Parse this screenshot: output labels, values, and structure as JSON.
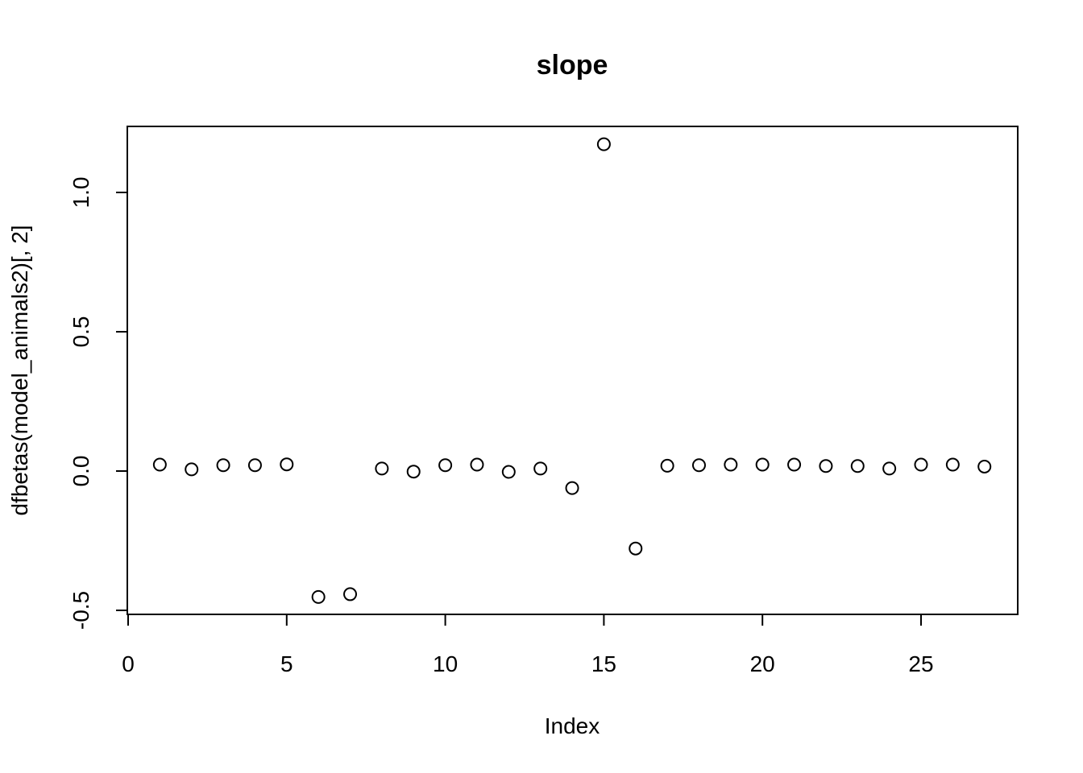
{
  "chart_data": {
    "type": "scatter",
    "title": "slope",
    "xlabel": "Index",
    "ylabel": "dfbetas(model_animals2)[, 2]",
    "xlim": [
      0,
      28
    ],
    "ylim": [
      -0.52,
      1.24
    ],
    "xticks": [
      0,
      5,
      10,
      15,
      20,
      25
    ],
    "xtick_labels": [
      "0",
      "5",
      "10",
      "15",
      "20",
      "25"
    ],
    "yticks": [
      -0.5,
      0.0,
      0.5,
      1.0
    ],
    "ytick_labels": [
      "-0.5",
      "0.0",
      "0.5",
      "1.0"
    ],
    "grid": false,
    "legend": "none",
    "marker": "open-circle",
    "x": [
      1,
      2,
      3,
      4,
      5,
      6,
      7,
      8,
      9,
      10,
      11,
      12,
      13,
      14,
      15,
      16,
      17,
      18,
      19,
      20,
      21,
      22,
      23,
      24,
      25,
      26,
      27
    ],
    "y": [
      0.023,
      0.006,
      0.021,
      0.021,
      0.024,
      -0.452,
      -0.442,
      0.009,
      -0.002,
      0.021,
      0.023,
      -0.003,
      0.009,
      -0.061,
      1.173,
      -0.278,
      0.019,
      0.021,
      0.023,
      0.023,
      0.023,
      0.018,
      0.018,
      0.009,
      0.023,
      0.023,
      0.016
    ]
  }
}
